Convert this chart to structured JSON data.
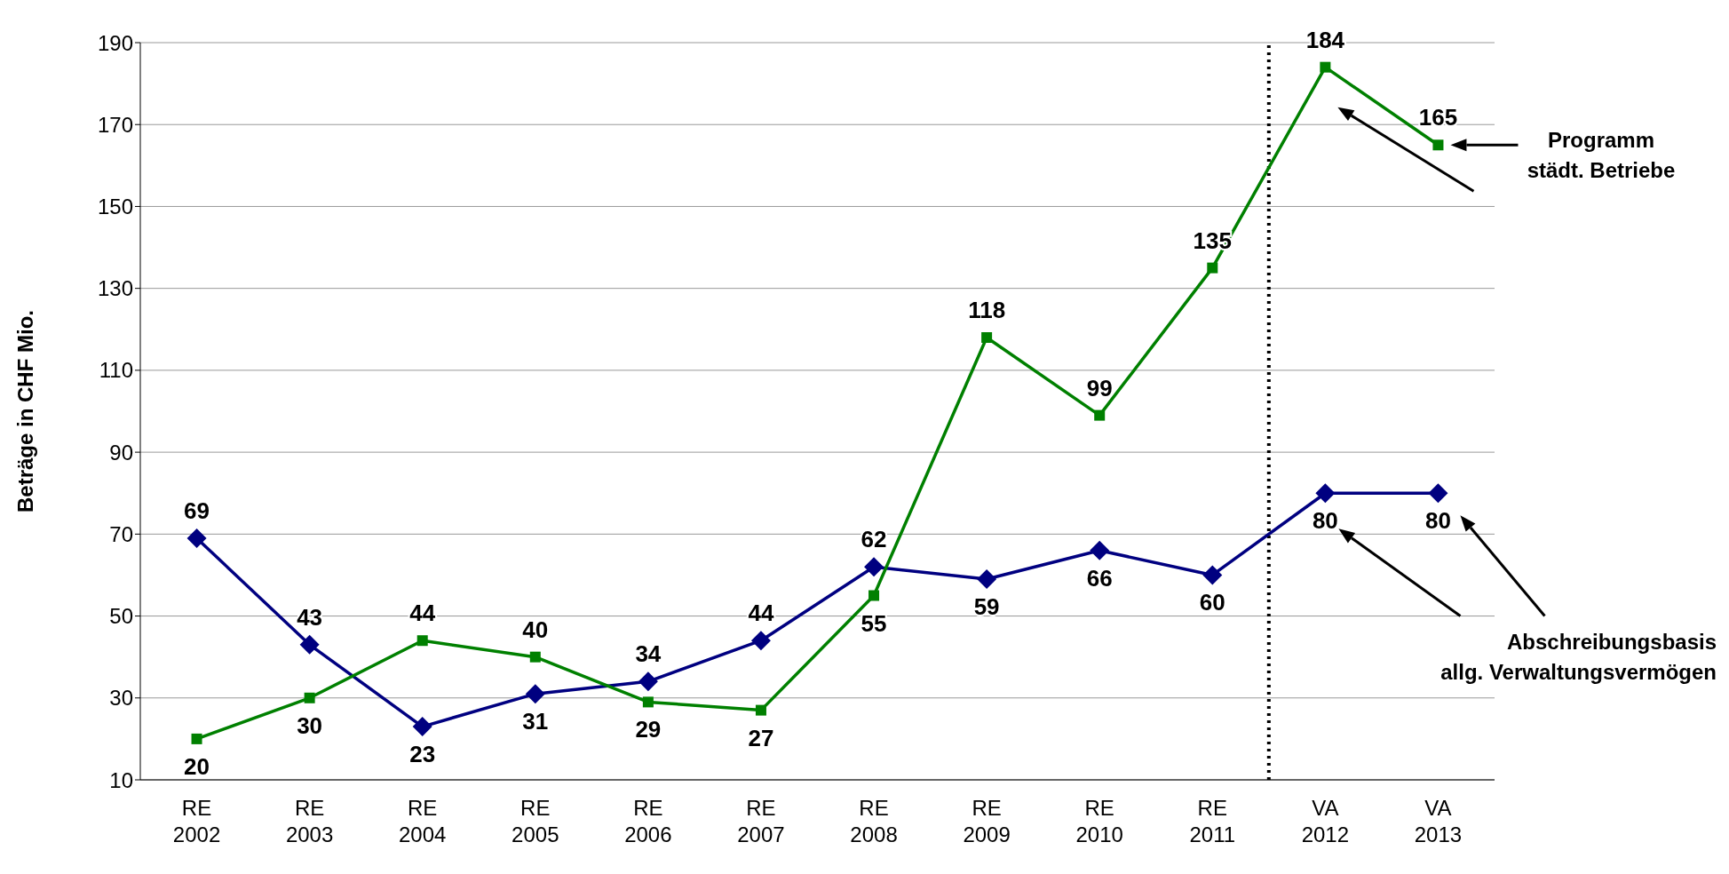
{
  "chart_data": {
    "type": "line",
    "ylabel": "Beträge in CHF Mio.",
    "categories": [
      "RE 2002",
      "RE 2003",
      "RE 2004",
      "RE 2005",
      "RE 2006",
      "RE 2007",
      "RE 2008",
      "RE 2009",
      "RE 2010",
      "RE 2011",
      "VA 2012",
      "VA 2013"
    ],
    "series": [
      {
        "name": "Abschreibungsbasis allg. Verwaltungsvermögen",
        "color": "#000080",
        "marker": "diamond",
        "values": [
          69,
          43,
          23,
          31,
          34,
          44,
          62,
          59,
          66,
          60,
          80,
          80
        ]
      },
      {
        "name": "Programm städt. Betriebe",
        "color": "#008000",
        "marker": "square",
        "values": [
          20,
          30,
          44,
          40,
          29,
          27,
          55,
          118,
          99,
          135,
          184,
          165
        ]
      }
    ],
    "ylim": [
      10,
      190
    ],
    "yticks": [
      10,
      30,
      50,
      70,
      90,
      110,
      130,
      150,
      170,
      190
    ],
    "grid": "y",
    "data_labels": true,
    "ref_lines": [
      {
        "axis": "x",
        "value": "VA 2012",
        "line_style": "dotted",
        "color": "#000000"
      }
    ]
  }
}
